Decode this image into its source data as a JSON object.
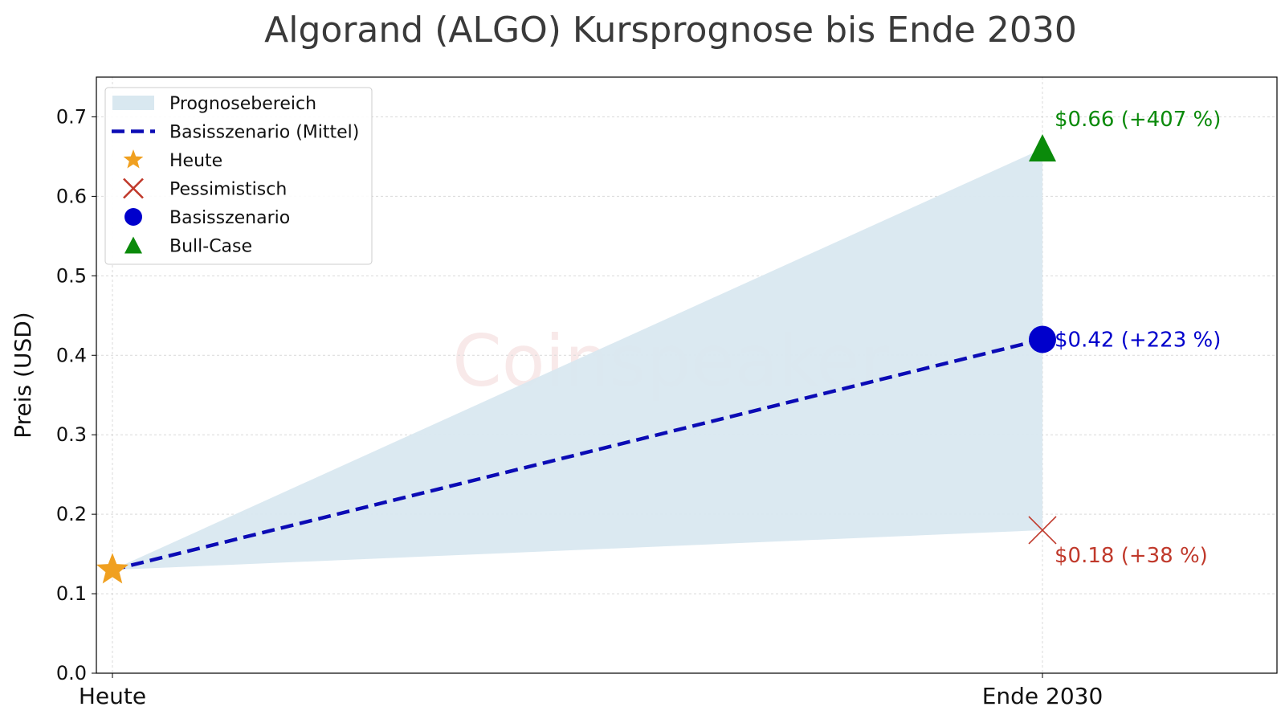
{
  "chart_data": {
    "type": "line",
    "title": "Algorand (ALGO) Kursprognose bis Ende 2030",
    "xlabel": "",
    "ylabel": "Preis (USD)",
    "categories": [
      "Heute",
      "Ende 2030"
    ],
    "ylim": [
      0.0,
      0.75
    ],
    "yticks": [
      "0.0",
      "0.1",
      "0.2",
      "0.3",
      "0.4",
      "0.5",
      "0.6",
      "0.7"
    ],
    "grid": true,
    "legend_position": "top-left",
    "watermark": "Coinspeaker",
    "current_price": 0.13,
    "range_band": {
      "name": "Prognosebereich",
      "lower": [
        0.13,
        0.18
      ],
      "upper": [
        0.13,
        0.66
      ],
      "color": "#d9e8f0"
    },
    "series": [
      {
        "name": "Basisszenario (Mittel)",
        "values": [
          0.13,
          0.42
        ],
        "style": "dashed",
        "color": "#0b0bb5"
      }
    ],
    "markers": [
      {
        "name": "Heute",
        "category": "Heute",
        "value": 0.13,
        "shape": "star",
        "color": "#f0a020",
        "label": ""
      },
      {
        "name": "Pessimistisch",
        "category": "Ende 2030",
        "value": 0.18,
        "shape": "x",
        "color": "#c0392b",
        "label": "$0.18 (+38 %)"
      },
      {
        "name": "Basisszenario",
        "category": "Ende 2030",
        "value": 0.42,
        "shape": "circle",
        "color": "#0000cc",
        "label": "$0.42 (+223 %)"
      },
      {
        "name": "Bull-Case",
        "category": "Ende 2030",
        "value": 0.66,
        "shape": "triangle",
        "color": "#0a8a0a",
        "label": "$0.66 (+407 %)"
      }
    ],
    "legend": [
      {
        "label": "Prognosebereich",
        "symbol": "band",
        "color": "#d9e8f0"
      },
      {
        "label": "Basisszenario (Mittel)",
        "symbol": "dashed-line",
        "color": "#0b0bb5"
      },
      {
        "label": "Heute",
        "symbol": "star",
        "color": "#f0a020"
      },
      {
        "label": "Pessimistisch",
        "symbol": "x",
        "color": "#c0392b"
      },
      {
        "label": "Basisszenario",
        "symbol": "circle",
        "color": "#0000cc"
      },
      {
        "label": "Bull-Case",
        "symbol": "triangle",
        "color": "#0a8a0a"
      }
    ]
  }
}
